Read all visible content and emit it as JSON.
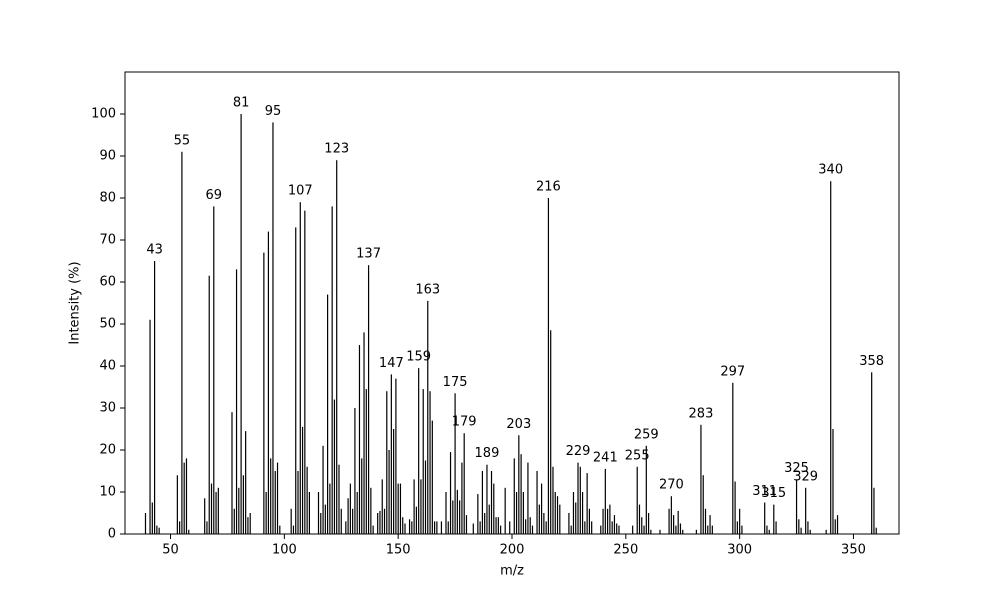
{
  "chart_data": {
    "type": "stem",
    "color": "#000000",
    "xlabel": "m/z",
    "ylabel": "Intensity (%)",
    "xlim": [
      30,
      370
    ],
    "ylim": [
      0,
      110
    ],
    "xticks": [
      50,
      100,
      150,
      200,
      250,
      300,
      350
    ],
    "yticks": [
      0,
      10,
      20,
      30,
      40,
      50,
      60,
      70,
      80,
      90,
      100
    ],
    "x": [
      39,
      41,
      42,
      43,
      44,
      45,
      53,
      54,
      55,
      56,
      57,
      58,
      65,
      66,
      67,
      68,
      69,
      70,
      71,
      77,
      78,
      79,
      80,
      81,
      82,
      83,
      84,
      85,
      91,
      92,
      93,
      94,
      95,
      96,
      97,
      98,
      103,
      104,
      105,
      106,
      107,
      108,
      109,
      110,
      111,
      115,
      116,
      117,
      118,
      119,
      120,
      121,
      122,
      123,
      124,
      125,
      127,
      128,
      129,
      130,
      131,
      132,
      133,
      134,
      135,
      136,
      137,
      138,
      139,
      141,
      142,
      143,
      144,
      145,
      146,
      147,
      148,
      149,
      150,
      151,
      152,
      153,
      155,
      156,
      157,
      158,
      159,
      160,
      161,
      162,
      163,
      164,
      165,
      166,
      167,
      169,
      171,
      172,
      173,
      174,
      175,
      176,
      177,
      178,
      179,
      180,
      183,
      185,
      186,
      187,
      188,
      189,
      190,
      191,
      192,
      193,
      194,
      195,
      197,
      199,
      201,
      202,
      203,
      204,
      205,
      206,
      207,
      208,
      209,
      211,
      212,
      213,
      214,
      215,
      216,
      217,
      218,
      219,
      220,
      221,
      225,
      226,
      227,
      228,
      229,
      230,
      231,
      232,
      233,
      234,
      235,
      239,
      240,
      241,
      242,
      243,
      244,
      245,
      246,
      247,
      253,
      255,
      256,
      257,
      258,
      259,
      260,
      261,
      265,
      269,
      270,
      271,
      272,
      273,
      274,
      275,
      281,
      283,
      284,
      285,
      286,
      287,
      288,
      297,
      298,
      299,
      300,
      301,
      311,
      312,
      313,
      315,
      316,
      325,
      326,
      327,
      329,
      330,
      331,
      338,
      340,
      341,
      342,
      343,
      358,
      359,
      360
    ],
    "values": [
      5,
      51,
      7.5,
      65,
      2,
      1.5,
      14,
      3,
      91,
      17,
      18,
      1,
      8.5,
      3,
      61.5,
      12,
      78,
      10,
      11,
      29,
      6,
      63,
      11,
      100,
      14,
      24.5,
      4,
      5,
      67,
      10,
      72,
      18,
      98,
      15,
      17,
      2,
      6,
      2,
      73,
      15,
      79,
      25.5,
      77,
      16,
      10,
      10,
      5,
      21,
      7,
      57,
      12,
      78,
      32,
      89,
      16.5,
      6,
      3,
      8.5,
      12,
      6,
      30,
      10,
      45,
      18,
      48,
      34.5,
      64,
      11,
      2,
      5,
      5.5,
      13,
      6,
      34,
      20,
      38,
      25,
      37,
      12,
      12,
      4,
      2.5,
      3.5,
      3,
      13,
      6.5,
      39.5,
      13,
      34.5,
      17.5,
      55.5,
      34,
      27,
      3,
      3,
      3,
      10,
      3,
      19.5,
      8,
      33.5,
      10.5,
      8,
      17,
      24,
      4.5,
      2.5,
      9.5,
      3,
      15,
      5,
      16.5,
      7,
      15,
      12,
      4,
      4,
      2,
      11,
      3,
      18,
      10,
      23.5,
      19,
      10,
      3.5,
      17,
      4,
      2,
      15,
      7,
      12,
      5,
      3,
      80,
      48.5,
      16,
      10,
      9,
      7,
      5,
      2,
      10,
      7.5,
      17,
      16,
      10,
      3,
      14.5,
      6,
      3,
      2,
      6,
      15.5,
      6,
      7,
      3,
      4.5,
      2.5,
      2,
      2,
      16,
      7,
      4,
      2,
      21,
      5,
      1,
      1,
      6,
      9,
      4.5,
      2,
      5.5,
      2.5,
      1,
      1,
      26,
      14,
      6,
      2,
      4.5,
      2,
      36,
      12.5,
      3,
      6,
      2,
      7.5,
      2,
      1,
      7,
      3,
      13,
      3.5,
      1.5,
      11,
      3,
      1,
      1,
      84,
      25,
      3.5,
      4.5,
      38.5,
      11,
      1.5
    ],
    "annotations": [
      43,
      55,
      69,
      81,
      95,
      107,
      123,
      137,
      147,
      159,
      163,
      175,
      179,
      189,
      203,
      216,
      229,
      241,
      255,
      259,
      270,
      283,
      297,
      311,
      315,
      325,
      329,
      340,
      358
    ]
  }
}
